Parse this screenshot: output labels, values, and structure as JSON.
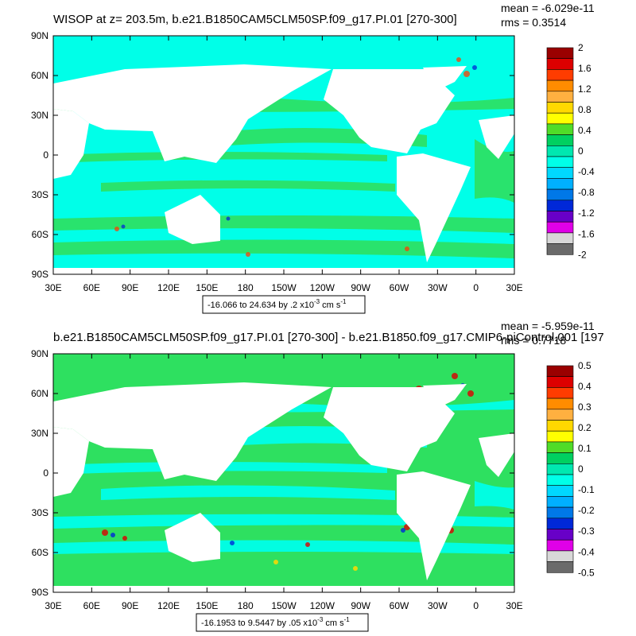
{
  "chart_data": [
    {
      "type": "heatmap",
      "title": "WISOP at z= 203.5m, b.e21.B1850CAM5CLM50SP.f09_g17.PI.01 [270-300]",
      "stats": {
        "mean": "mean = -6.029e-11",
        "rms": "rms = 0.3514"
      },
      "info_box": {
        "prefix": "-16.066 to 24.634 by .2 x10",
        "exp": "-3",
        "unit": " cm s",
        "unit_exp": "-1"
      },
      "x_ticks": [
        "30E",
        "60E",
        "90E",
        "120E",
        "150E",
        "180",
        "150W",
        "120W",
        "90W",
        "60W",
        "30W",
        "0",
        "30E"
      ],
      "y_ticks": [
        "90N",
        "60N",
        "30N",
        "0",
        "30S",
        "60S",
        "90S"
      ],
      "xlim": [
        30,
        390
      ],
      "ylim": [
        -90,
        90
      ],
      "colorbar": {
        "labels": [
          "2",
          "1.6",
          "1.2",
          "0.8",
          "0.4",
          "0",
          "-0.4",
          "-0.8",
          "-1.2",
          "-1.6",
          "-2"
        ],
        "colors": [
          "#9a0000",
          "#dd0000",
          "#ff3c00",
          "#ff8c00",
          "#ffb040",
          "#ffd800",
          "#ffff00",
          "#50dc28",
          "#00d060",
          "#00e8b0",
          "#00ffe8",
          "#00d8ff",
          "#00b0ff",
          "#0078e8",
          "#0028d8",
          "#6800c8",
          "#e000e8",
          "#d8d8d8",
          "#6a6a6a"
        ]
      }
    },
    {
      "type": "heatmap",
      "title": "b.e21.B1850CAM5CLM50SP.f09_g17.PI.01 [270-300] - b.e21.B1850.f09_g17.CMIP6-piControl.001 [197",
      "stats": {
        "mean": "mean = -5.959e-11",
        "rms": "rms = 0.7718"
      },
      "info_box": {
        "prefix": "-16.1953 to 9.5447 by .05 x10",
        "exp": "-3",
        "unit": " cm s",
        "unit_exp": "-1"
      },
      "x_ticks": [
        "30E",
        "60E",
        "90E",
        "120E",
        "150E",
        "180",
        "150W",
        "120W",
        "90W",
        "60W",
        "30W",
        "0",
        "30E"
      ],
      "y_ticks": [
        "90N",
        "60N",
        "30N",
        "0",
        "30S",
        "60S",
        "90S"
      ],
      "xlim": [
        30,
        390
      ],
      "ylim": [
        -90,
        90
      ],
      "colorbar": {
        "labels": [
          "0.5",
          "0.4",
          "0.3",
          "0.2",
          "0.1",
          "0",
          "-0.1",
          "-0.2",
          "-0.3",
          "-0.4",
          "-0.5"
        ],
        "colors": [
          "#9a0000",
          "#dd0000",
          "#ff3c00",
          "#ff8c00",
          "#ffb040",
          "#ffd800",
          "#ffff00",
          "#50dc28",
          "#00d060",
          "#00e8b0",
          "#00ffe8",
          "#00d8ff",
          "#00b0ff",
          "#0078e8",
          "#0028d8",
          "#6800c8",
          "#e000e8",
          "#d8d8d8",
          "#6a6a6a"
        ]
      }
    }
  ]
}
